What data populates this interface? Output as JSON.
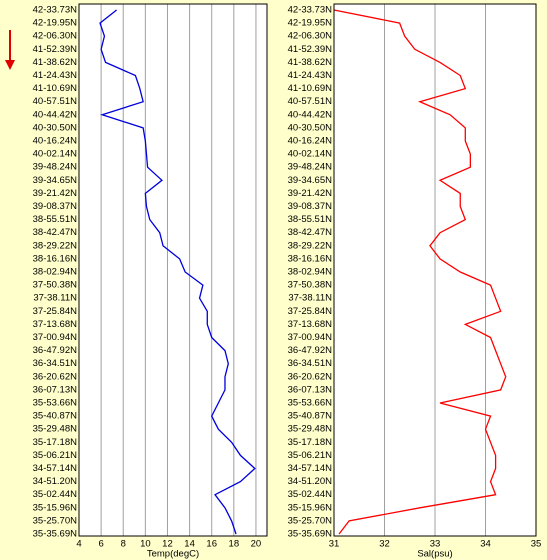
{
  "chart_data": [
    {
      "type": "line",
      "x_label": "Temp(degC)",
      "xlim": [
        4,
        21
      ],
      "xticks": [
        4,
        6,
        8,
        10,
        12,
        14,
        16,
        18,
        20
      ],
      "grid": true,
      "categories": [
        "42-33.73N",
        "42-19.95N",
        "42-06.30N",
        "41-52.39N",
        "41-38.62N",
        "41-24.43N",
        "41-10.69N",
        "40-57.51N",
        "40-44.42N",
        "40-30.50N",
        "40-16.24N",
        "40-02.14N",
        "39-48.24N",
        "39-34.65N",
        "39-21.42N",
        "39-08.37N",
        "38-55.51N",
        "38-42.47N",
        "38-29.22N",
        "38-16.16N",
        "38-02.94N",
        "37-50.38N",
        "37-38.11N",
        "37-25.84N",
        "37-13.68N",
        "37-00.94N",
        "36-47.92N",
        "36-34.51N",
        "36-20.62N",
        "36-07.13N",
        "35-53.66N",
        "35-40.87N",
        "35-29.48N",
        "35-17.18N",
        "35-06.21N",
        "34-57.14N",
        "34-51.20N",
        "35-02.44N",
        "35-15.96N",
        "35-25.70N",
        "35-35.69N"
      ],
      "series": [
        {
          "color": "#0000dd",
          "values": [
            7.4,
            5.9,
            6.3,
            6.0,
            6.4,
            9.1,
            9.5,
            9.8,
            6.1,
            9.8,
            10.0,
            10.1,
            10.2,
            11.5,
            10.0,
            10.1,
            10.4,
            11.3,
            11.6,
            13.1,
            13.6,
            15.2,
            14.9,
            15.6,
            15.6,
            16.0,
            17.2,
            17.5,
            17.2,
            17.2,
            16.6,
            16.0,
            16.6,
            17.8,
            18.6,
            19.9,
            18.6,
            16.3,
            17.2,
            17.8,
            18.2
          ]
        }
      ]
    },
    {
      "type": "line",
      "x_label": "Sal(psu)",
      "xlim": [
        31,
        35
      ],
      "xticks": [
        31,
        32,
        33,
        34,
        35
      ],
      "grid": true,
      "categories": [
        "42-33.73N",
        "42-19.95N",
        "42-06.30N",
        "41-52.39N",
        "41-38.62N",
        "41-24.43N",
        "41-10.69N",
        "40-57.51N",
        "40-44.42N",
        "40-30.50N",
        "40-16.24N",
        "40-02.14N",
        "39-48.24N",
        "39-34.65N",
        "39-21.42N",
        "39-08.37N",
        "38-55.51N",
        "38-42.47N",
        "38-29.22N",
        "38-16.16N",
        "38-02.94N",
        "37-50.38N",
        "37-38.11N",
        "37-25.84N",
        "37-13.68N",
        "37-00.94N",
        "36-47.92N",
        "36-34.51N",
        "36-20.62N",
        "36-07.13N",
        "35-53.66N",
        "35-40.87N",
        "35-29.48N",
        "35-17.18N",
        "35-06.21N",
        "34-57.14N",
        "34-51.20N",
        "35-02.44N",
        "35-15.96N",
        "35-25.70N",
        "35-35.69N"
      ],
      "series": [
        {
          "color": "#ff0000",
          "values": [
            31.0,
            32.3,
            32.4,
            32.6,
            33.1,
            33.5,
            33.6,
            32.7,
            33.3,
            33.6,
            33.6,
            33.7,
            33.7,
            33.1,
            33.5,
            33.5,
            33.6,
            33.1,
            32.9,
            33.1,
            33.5,
            34.1,
            34.2,
            34.3,
            33.6,
            34.1,
            34.2,
            34.3,
            34.4,
            34.3,
            33.1,
            34.1,
            34.0,
            34.1,
            34.2,
            34.2,
            34.1,
            34.2,
            32.7,
            31.3,
            31.1
          ]
        }
      ]
    }
  ]
}
